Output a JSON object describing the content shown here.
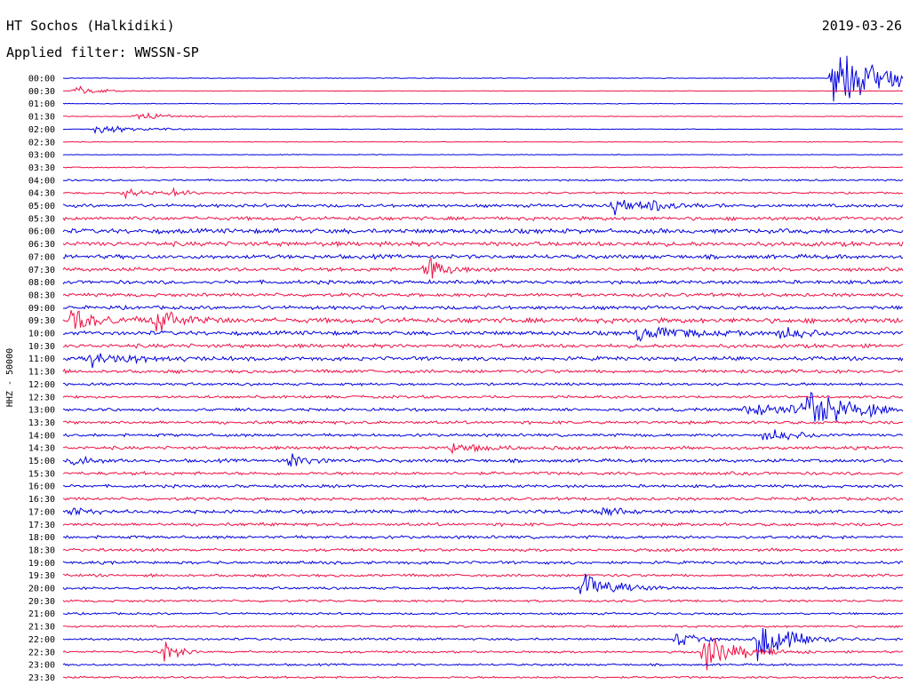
{
  "header": {
    "station": "HT Sochos (Halkidiki)",
    "filter": "Applied filter: WWSSN-SP",
    "date": "2019-03-26"
  },
  "chart_data": {
    "type": "line",
    "title": "HT Sochos (Halkidiki)",
    "subtitle": "Applied filter: WWSSN-SP",
    "ylabel": "HHZ - 50000",
    "xlabel": "",
    "grid": false,
    "legend": "none",
    "row_labels": [
      "00:00",
      "00:30",
      "01:00",
      "01:30",
      "02:00",
      "02:30",
      "03:00",
      "03:30",
      "04:00",
      "04:30",
      "05:00",
      "05:30",
      "06:00",
      "06:30",
      "07:00",
      "07:30",
      "08:00",
      "08:30",
      "09:00",
      "09:30",
      "10:00",
      "10:30",
      "11:00",
      "11:30",
      "12:00",
      "12:30",
      "13:00",
      "13:30",
      "14:00",
      "14:30",
      "15:00",
      "15:30",
      "16:00",
      "16:30",
      "17:00",
      "17:30",
      "18:00",
      "18:30",
      "19:00",
      "19:30",
      "20:00",
      "20:30",
      "21:00",
      "21:30",
      "22:00",
      "22:30",
      "23:00",
      "23:30"
    ],
    "row_colors": [
      "#0000dd",
      "#ee1144"
    ],
    "noise_levels": [
      0.3,
      0.2,
      0.3,
      0.3,
      0.3,
      0.3,
      0.3,
      0.5,
      0.8,
      0.8,
      1.4,
      1.6,
      2.0,
      2.0,
      1.8,
      1.6,
      1.6,
      1.5,
      1.6,
      2.2,
      1.8,
      1.7,
      1.7,
      1.5,
      1.2,
      1.2,
      1.3,
      1.4,
      1.3,
      1.4,
      1.5,
      1.4,
      1.3,
      1.3,
      1.5,
      1.4,
      1.3,
      1.3,
      1.3,
      1.2,
      1.1,
      1.0,
      0.9,
      0.9,
      1.0,
      1.0,
      0.9,
      0.9
    ],
    "events": [
      {
        "row": 0,
        "minute": 27.5,
        "amp": 38,
        "dur": 1.6
      },
      {
        "row": 1,
        "minute": 0.4,
        "amp": 7,
        "dur": 0.8
      },
      {
        "row": 3,
        "minute": 2.6,
        "amp": 4,
        "dur": 1.2
      },
      {
        "row": 4,
        "minute": 1.1,
        "amp": 5,
        "dur": 1.5
      },
      {
        "row": 9,
        "minute": 2.2,
        "amp": 6,
        "dur": 0.6
      },
      {
        "row": 9,
        "minute": 3.9,
        "amp": 6,
        "dur": 0.5
      },
      {
        "row": 10,
        "minute": 19.7,
        "amp": 8,
        "dur": 0.8
      },
      {
        "row": 10,
        "minute": 21.0,
        "amp": 6,
        "dur": 0.7
      },
      {
        "row": 15,
        "minute": 13.0,
        "amp": 14,
        "dur": 0.7
      },
      {
        "row": 19,
        "minute": 0.2,
        "amp": 12,
        "dur": 1.2
      },
      {
        "row": 19,
        "minute": 3.3,
        "amp": 12,
        "dur": 1.0
      },
      {
        "row": 20,
        "minute": 20.5,
        "amp": 12,
        "dur": 1.2
      },
      {
        "row": 20,
        "minute": 25.5,
        "amp": 9,
        "dur": 0.8
      },
      {
        "row": 22,
        "minute": 1.0,
        "amp": 8,
        "dur": 1.4
      },
      {
        "row": 26,
        "minute": 24.4,
        "amp": 8,
        "dur": 2.0
      },
      {
        "row": 26,
        "minute": 26.5,
        "amp": 20,
        "dur": 1.8
      },
      {
        "row": 28,
        "minute": 25.0,
        "amp": 8,
        "dur": 1.0
      },
      {
        "row": 29,
        "minute": 13.8,
        "amp": 7,
        "dur": 1.0
      },
      {
        "row": 30,
        "minute": 0.3,
        "amp": 7,
        "dur": 0.6
      },
      {
        "row": 30,
        "minute": 8.0,
        "amp": 8,
        "dur": 0.7
      },
      {
        "row": 34,
        "minute": 0.2,
        "amp": 6,
        "dur": 0.6
      },
      {
        "row": 34,
        "minute": 19.2,
        "amp": 6,
        "dur": 0.8
      },
      {
        "row": 40,
        "minute": 18.6,
        "amp": 20,
        "dur": 0.9
      },
      {
        "row": 44,
        "minute": 21.9,
        "amp": 8,
        "dur": 0.7
      },
      {
        "row": 44,
        "minute": 24.8,
        "amp": 24,
        "dur": 0.8
      },
      {
        "row": 44,
        "minute": 25.3,
        "amp": 14,
        "dur": 0.9
      },
      {
        "row": 45,
        "minute": 3.6,
        "amp": 28,
        "dur": 0.3
      },
      {
        "row": 45,
        "minute": 22.9,
        "amp": 24,
        "dur": 1.0
      }
    ]
  }
}
